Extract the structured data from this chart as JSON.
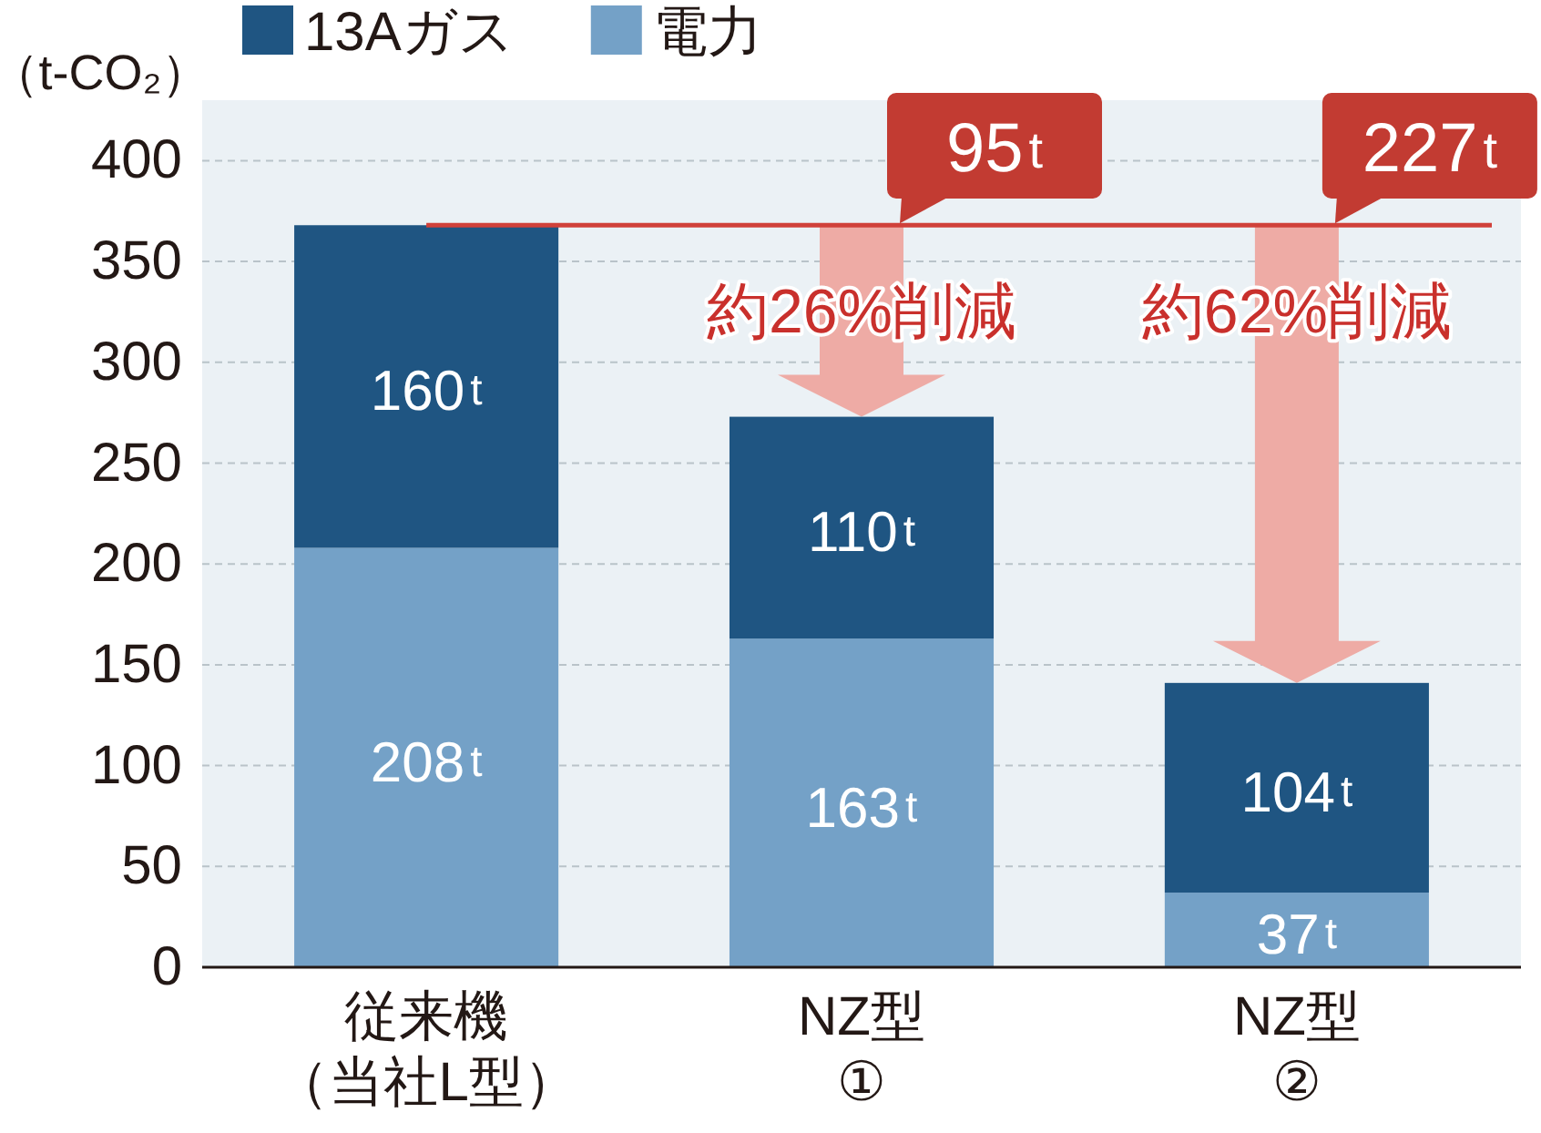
{
  "chart_data": {
    "type": "bar",
    "stacked": true,
    "ylabel": "（t-CO₂）",
    "categories": [
      "従来機（当社L型）",
      "NZ型\n①",
      "NZ型\n②"
    ],
    "series": [
      {
        "name": "電力",
        "color": "#74a1c7",
        "values": [
          208,
          163,
          37
        ],
        "value_labels": [
          "208t",
          "163t",
          "37t"
        ]
      },
      {
        "name": "13Aガス",
        "color": "#1f5582",
        "values": [
          160,
          110,
          104
        ],
        "value_labels": [
          "160t",
          "110t",
          "104t"
        ]
      }
    ],
    "ylim": [
      0,
      430
    ],
    "yticks": [
      0,
      50,
      100,
      150,
      200,
      250,
      300,
      350,
      400
    ],
    "grid": "y",
    "legend": "top left",
    "ref_lines": [
      {
        "axis": "y",
        "value": 368,
        "color": "#d0413a"
      }
    ],
    "annotations": [
      {
        "text": "95t",
        "x": "NZ型\n①",
        "y": 368
      },
      {
        "text": "227t",
        "x": "NZ型\n②",
        "y": 368
      },
      "約26%削減",
      "約62%削減"
    ]
  }
}
